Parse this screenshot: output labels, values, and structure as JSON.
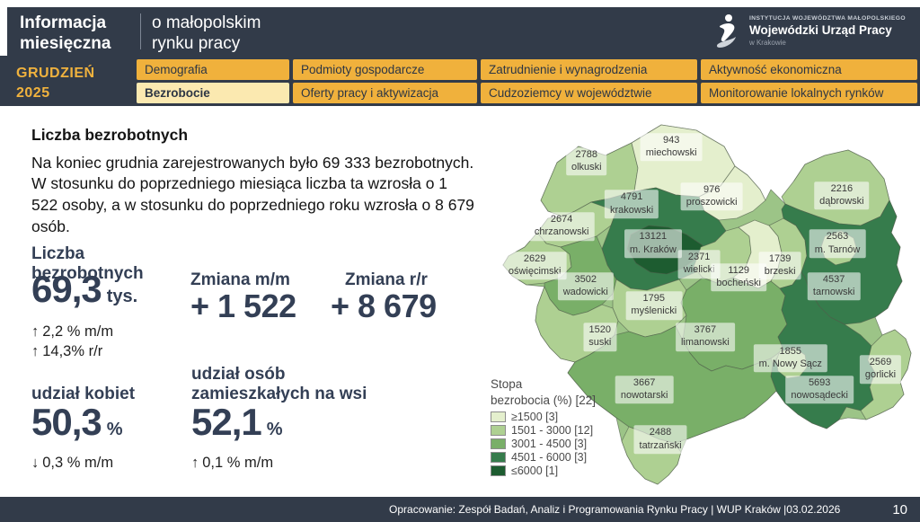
{
  "header": {
    "title_line1": "Informacja",
    "title_line2": "miesięczna",
    "subtitle_line1": "o małopolskim",
    "subtitle_line2": "rynku pracy",
    "period_line1": "GRUDZIEŃ",
    "period_line2": "2025",
    "logo": {
      "small_top": "INSTYTUCJA WOJEWÓDZTWA MAŁOPOLSKIEGO",
      "name": "Wojewódzki Urząd Pracy",
      "small_bottom": "w Krakowie"
    }
  },
  "nav": {
    "items": [
      {
        "label": "Demografia",
        "active": false
      },
      {
        "label": "Podmioty gospodarcze",
        "active": false
      },
      {
        "label": "Zatrudnienie i wynagrodzenia",
        "active": false
      },
      {
        "label": "Aktywność ekonomiczna",
        "active": false
      },
      {
        "label": "Bezrobocie",
        "active": true
      },
      {
        "label": "Oferty pracy i aktywizacja",
        "active": false
      },
      {
        "label": "Cudzoziemcy w województwie",
        "active": false
      },
      {
        "label": "Monitorowanie lokalnych rynków",
        "active": false
      }
    ]
  },
  "content": {
    "heading": "Liczba bezrobotnych",
    "paragraph": "Na koniec grudnia zarejestrowanych było 69 333 bezrobotnych. W stosunku do poprzedniego miesiąca liczba ta wzrosła o 1 522 osoby, a w stosunku do poprzedniego roku wzrosła o 8 679 osób.",
    "stats": {
      "unemployed": {
        "label_line1": "Liczba",
        "label_line2": "bezrobotnych",
        "value": "69,3",
        "unit": "tys.",
        "change_mm": "2,2 % m/m",
        "change_yy": "14,3% r/r",
        "up_arrow": "↑",
        "down_arrow": "↓"
      },
      "change_mm": {
        "label": "Zmiana m/m",
        "value": "+ 1 522"
      },
      "change_yy": {
        "label": "Zmiana r/r",
        "value": "+ 8 679"
      },
      "women": {
        "label": "udział kobiet",
        "value": "50,3",
        "unit": "%",
        "change": "0,3 % m/m"
      },
      "rural": {
        "label_line1": "udział osób",
        "label_line2": "zamieszkałych na wsi",
        "value": "52,1",
        "unit": "%",
        "change": "0,1 % m/m"
      }
    }
  },
  "map": {
    "palette": [
      "#e4efcd",
      "#aed092",
      "#79af68",
      "#367c4c",
      "#1d5c30"
    ],
    "legend": {
      "title_line1": "Stopa",
      "title_line2": "bezrobocia (%) [22]",
      "items": [
        {
          "label": "≥1500 [3]"
        },
        {
          "label": "1501 - 3000 [12]"
        },
        {
          "label": "3001 - 4500 [3]"
        },
        {
          "label": "4501 - 6000 [3]"
        },
        {
          "label": "≤6000 [1]"
        }
      ]
    },
    "counties": [
      {
        "key": "olkuski",
        "value": "2788",
        "name": "olkuski",
        "bucket": 1,
        "lx": 23.3,
        "ly": 13.2
      },
      {
        "key": "miechowski",
        "value": "943",
        "name": "miechowski",
        "bucket": 0,
        "lx": 42.8,
        "ly": 9.5
      },
      {
        "key": "proszowicki",
        "value": "976",
        "name": "proszowicki",
        "bucket": 0,
        "lx": 52.1,
        "ly": 22.3
      },
      {
        "key": "dabrowski",
        "value": "2216",
        "name": "dąbrowski",
        "bucket": 1,
        "lx": 82.0,
        "ly": 22.0
      },
      {
        "key": "chrzanowski",
        "value": "2674",
        "name": "chrzanowski",
        "bucket": 1,
        "lx": 17.6,
        "ly": 30.0
      },
      {
        "key": "krakowski",
        "value": "4791",
        "name": "krakowski",
        "bucket": 3,
        "lx": 33.7,
        "ly": 24.3
      },
      {
        "key": "krakow_city",
        "value": "13121",
        "name": "m. Kraków",
        "bucket": 4,
        "lx": 38.6,
        "ly": 34.5
      },
      {
        "key": "oswiecimski",
        "value": "2629",
        "name": "oświęcimski",
        "bucket": 1,
        "lx": 11.4,
        "ly": 40.2
      },
      {
        "key": "wadowicki",
        "value": "3502",
        "name": "wadowicki",
        "bucket": 2,
        "lx": 23.1,
        "ly": 45.5
      },
      {
        "key": "wielicki",
        "value": "2371",
        "name": "wielicki",
        "bucket": 1,
        "lx": 49.2,
        "ly": 39.8
      },
      {
        "key": "bochenski",
        "value": "1129",
        "name": "bocheński",
        "bucket": 0,
        "lx": 58.3,
        "ly": 43.2
      },
      {
        "key": "brzeski",
        "value": "1739",
        "name": "brzeski",
        "bucket": 1,
        "lx": 67.8,
        "ly": 40.2
      },
      {
        "key": "tarnow_city",
        "value": "2563",
        "name": "m. Tarnów",
        "bucket": 1,
        "lx": 81.0,
        "ly": 34.5
      },
      {
        "key": "tarnowski",
        "value": "4537",
        "name": "tarnowski",
        "bucket": 3,
        "lx": 80.2,
        "ly": 45.5
      },
      {
        "key": "myslenicki",
        "value": "1795",
        "name": "myślenicki",
        "bucket": 1,
        "lx": 38.8,
        "ly": 50.5
      },
      {
        "key": "suski",
        "value": "1520",
        "name": "suski",
        "bucket": 1,
        "lx": 26.4,
        "ly": 58.6
      },
      {
        "key": "limanowski",
        "value": "3767",
        "name": "limanowski",
        "bucket": 2,
        "lx": 50.6,
        "ly": 58.6
      },
      {
        "key": "nowy_sacz_city",
        "value": "1855",
        "name": "m. Nowy Sącz",
        "bucket": 1,
        "lx": 70.2,
        "ly": 64.1
      },
      {
        "key": "nowosadecki",
        "value": "5693",
        "name": "nowosądecki",
        "bucket": 3,
        "lx": 76.9,
        "ly": 72.3
      },
      {
        "key": "gorlicki",
        "value": "2569",
        "name": "gorlicki",
        "bucket": 1,
        "lx": 90.9,
        "ly": 67.0
      },
      {
        "key": "nowotarski",
        "value": "3667",
        "name": "nowotarski",
        "bucket": 2,
        "lx": 36.6,
        "ly": 72.3
      },
      {
        "key": "tatrzanski",
        "value": "2488",
        "name": "tatrzański",
        "bucket": 1,
        "lx": 40.3,
        "ly": 85.2
      }
    ]
  },
  "footer": {
    "credit": "Opracowanie: Zespół Badań, Analiz i Programowania Rynku Pracy | WUP Kraków |03.02.2026",
    "page": "10"
  }
}
